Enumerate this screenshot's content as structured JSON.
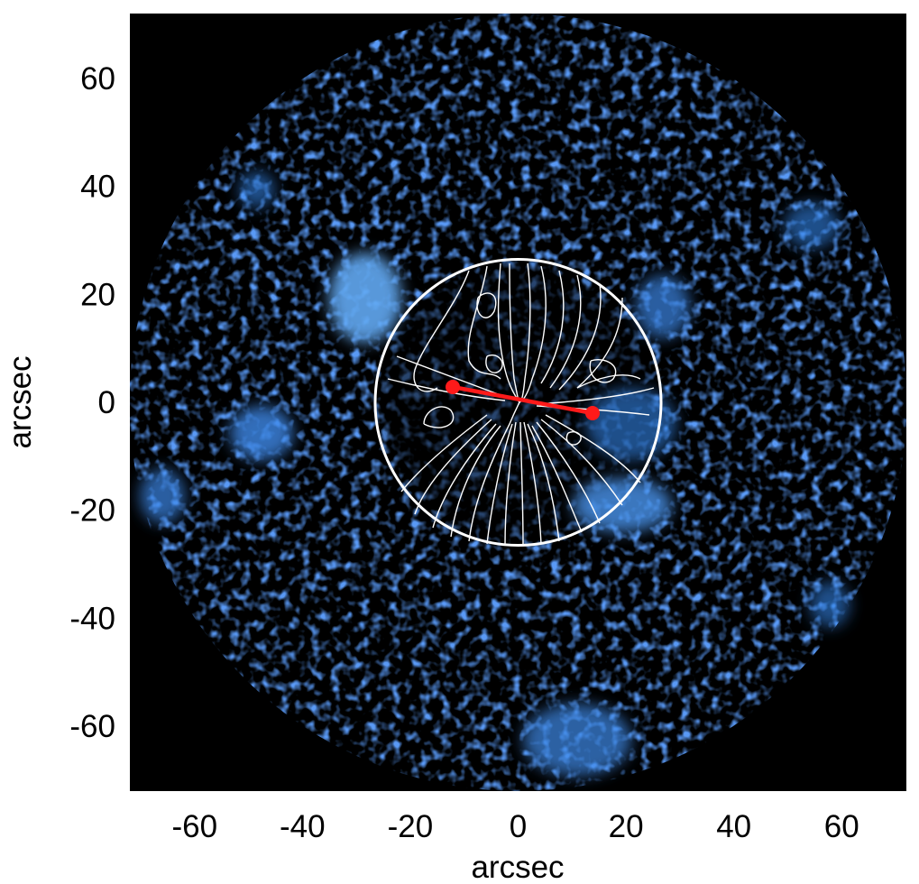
{
  "image": {
    "xlabel": "arcsec",
    "ylabel": "arcsec",
    "xlim": [
      -72,
      72
    ],
    "ylim": [
      -72,
      72
    ],
    "x_ticks": [
      "-60",
      "-40",
      "-20",
      "0",
      "20",
      "40",
      "60"
    ],
    "x_tick_values": [
      -60,
      -40,
      -20,
      0,
      20,
      40,
      60
    ],
    "y_ticks": [
      "60",
      "40",
      "20",
      "0",
      "-20",
      "-40",
      "-60"
    ],
    "y_tick_values": [
      60,
      40,
      20,
      0,
      -20,
      -40,
      -60
    ],
    "field_radius_arcsec": 72,
    "inner_circle_radius_arcsec": 26.5,
    "red_segment_endpoints": [
      [
        -12.5,
        2.2
      ],
      [
        14,
        -2.6
      ]
    ],
    "colors": {
      "background": "#000000",
      "emission": "#2f7fe8",
      "contours": "#ffffff",
      "marker": "#ff1a1a"
    }
  }
}
